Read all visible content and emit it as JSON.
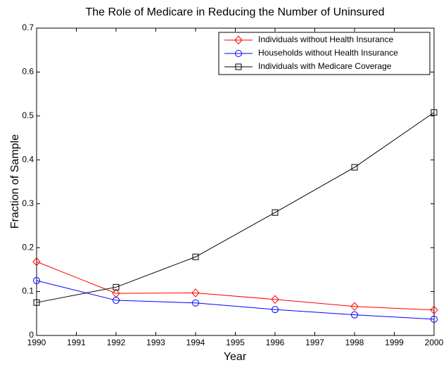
{
  "chart_data": {
    "type": "line",
    "title": "The Role of Medicare in Reducing the Number of Uninsured",
    "xlabel": "Year",
    "ylabel": "Fraction of Sample",
    "x": [
      1990,
      1992,
      1994,
      1996,
      1998,
      2000
    ],
    "series": [
      {
        "name": "Individuals without Health Insurance",
        "color": "#ff0000",
        "marker": "diamond",
        "values": [
          0.168,
          0.096,
          0.097,
          0.082,
          0.066,
          0.058
        ]
      },
      {
        "name": "Households without Health Insurance",
        "color": "#0000ff",
        "marker": "circle",
        "values": [
          0.125,
          0.08,
          0.074,
          0.059,
          0.047,
          0.037
        ]
      },
      {
        "name": "Individuals with Medicare Coverage",
        "color": "#000000",
        "marker": "square",
        "values": [
          0.075,
          0.11,
          0.179,
          0.28,
          0.383,
          0.508
        ]
      }
    ],
    "xlim": [
      1990,
      2000
    ],
    "xticks": [
      1990,
      1991,
      1992,
      1993,
      1994,
      1995,
      1996,
      1997,
      1998,
      1999,
      2000
    ],
    "ylim": [
      0,
      0.7
    ],
    "yticks": [
      0,
      0.1,
      0.2,
      0.3,
      0.4,
      0.5,
      0.6,
      0.7
    ],
    "grid": false,
    "legend": "top-right"
  }
}
